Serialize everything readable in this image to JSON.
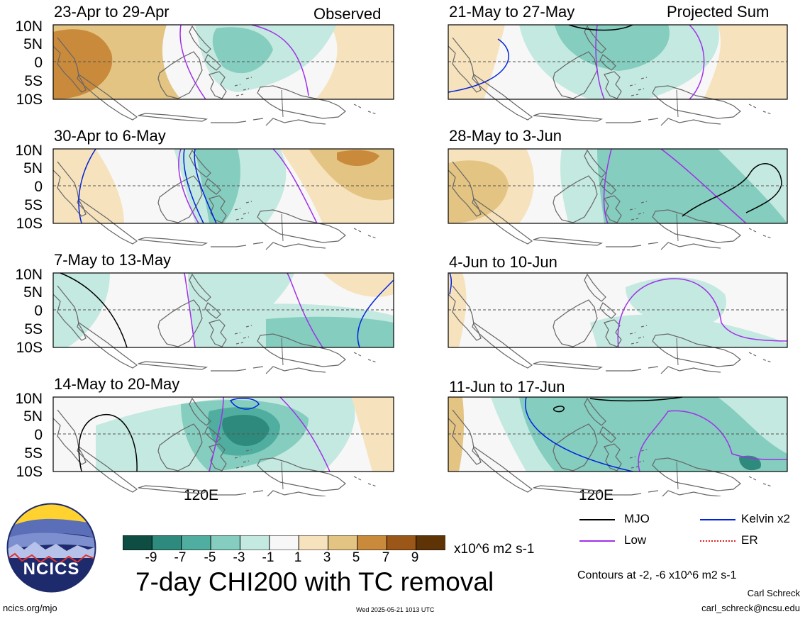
{
  "left_column_label": "Observed",
  "right_column_label": "Projected Sum",
  "panels": [
    {
      "title": "23-Apr to 29-Apr"
    },
    {
      "title": "30-Apr to 6-May"
    },
    {
      "title": "7-May to 13-May"
    },
    {
      "title": "14-May to 20-May"
    },
    {
      "title": "21-May to 27-May"
    },
    {
      "title": "28-May to 3-Jun"
    },
    {
      "title": "4-Jun to 10-Jun"
    },
    {
      "title": "11-Jun to 17-Jun"
    }
  ],
  "lat_labels": [
    "10N",
    "5N",
    "0",
    "5S",
    "10S"
  ],
  "lon_label": "120E",
  "colorbar": {
    "ticks": [
      "-9",
      "-7",
      "-5",
      "-3",
      "-1",
      "1",
      "3",
      "5",
      "7",
      "9"
    ],
    "units": "x10^6 m2 s-1",
    "colors": [
      "#0e4d42",
      "#2d8a7c",
      "#4fae9f",
      "#84cdbf",
      "#c4e9e0",
      "#f7f7f7",
      "#f6e3bd",
      "#e4c483",
      "#c98a3c",
      "#9b5717",
      "#5e3306"
    ]
  },
  "main_title": "7-day CHI200 with TC removal",
  "legend": [
    {
      "label": "MJO",
      "color": "#000000"
    },
    {
      "label": "Kelvin x2",
      "color": "#0022dd"
    },
    {
      "label": "Low",
      "color": "#a030e8"
    },
    {
      "label": "ER",
      "color": "#dd2222"
    }
  ],
  "contour_note": "Contours at -2, -6 x10^6 m2 s-1",
  "author": "Carl Schreck",
  "email": "carl_schreck@ncsu.edu",
  "website": "ncics.org/mjo",
  "timestamp": "Wed 2025-05-21 1013 UTC",
  "logo_text": "NCICS"
}
